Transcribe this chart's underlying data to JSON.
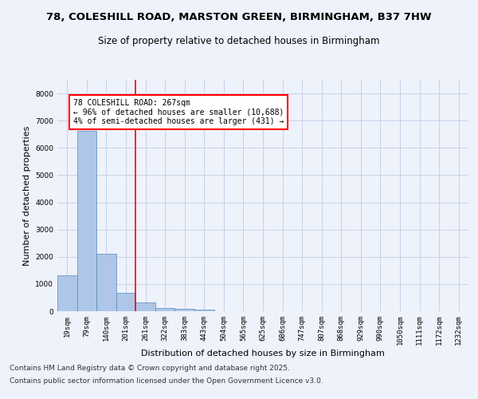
{
  "title_line1": "78, COLESHILL ROAD, MARSTON GREEN, BIRMINGHAM, B37 7HW",
  "title_line2": "Size of property relative to detached houses in Birmingham",
  "xlabel": "Distribution of detached houses by size in Birmingham",
  "ylabel": "Number of detached properties",
  "categories": [
    "19sqm",
    "79sqm",
    "140sqm",
    "201sqm",
    "261sqm",
    "322sqm",
    "383sqm",
    "443sqm",
    "504sqm",
    "565sqm",
    "625sqm",
    "686sqm",
    "747sqm",
    "807sqm",
    "868sqm",
    "929sqm",
    "990sqm",
    "1050sqm",
    "1111sqm",
    "1172sqm",
    "1232sqm"
  ],
  "values": [
    1320,
    6620,
    2100,
    670,
    310,
    120,
    75,
    50,
    0,
    0,
    0,
    0,
    0,
    0,
    0,
    0,
    0,
    0,
    0,
    0,
    0
  ],
  "bar_color": "#aec6e8",
  "bar_edge_color": "#5589b8",
  "vline_x": 3.5,
  "vline_color": "red",
  "annotation_box_text": "78 COLESHILL ROAD: 267sqm\n← 96% of detached houses are smaller (10,688)\n4% of semi-detached houses are larger (431) →",
  "ylim": [
    0,
    8500
  ],
  "yticks": [
    0,
    1000,
    2000,
    3000,
    4000,
    5000,
    6000,
    7000,
    8000
  ],
  "background_color": "#eef2fb",
  "axes_bg_color": "#eef2fb",
  "grid_color": "#c8d0e8",
  "footer_line1": "Contains HM Land Registry data © Crown copyright and database right 2025.",
  "footer_line2": "Contains public sector information licensed under the Open Government Licence v3.0.",
  "title_fontsize": 9.5,
  "subtitle_fontsize": 8.5,
  "tick_fontsize": 6.5,
  "label_fontsize": 8,
  "footer_fontsize": 6.5
}
